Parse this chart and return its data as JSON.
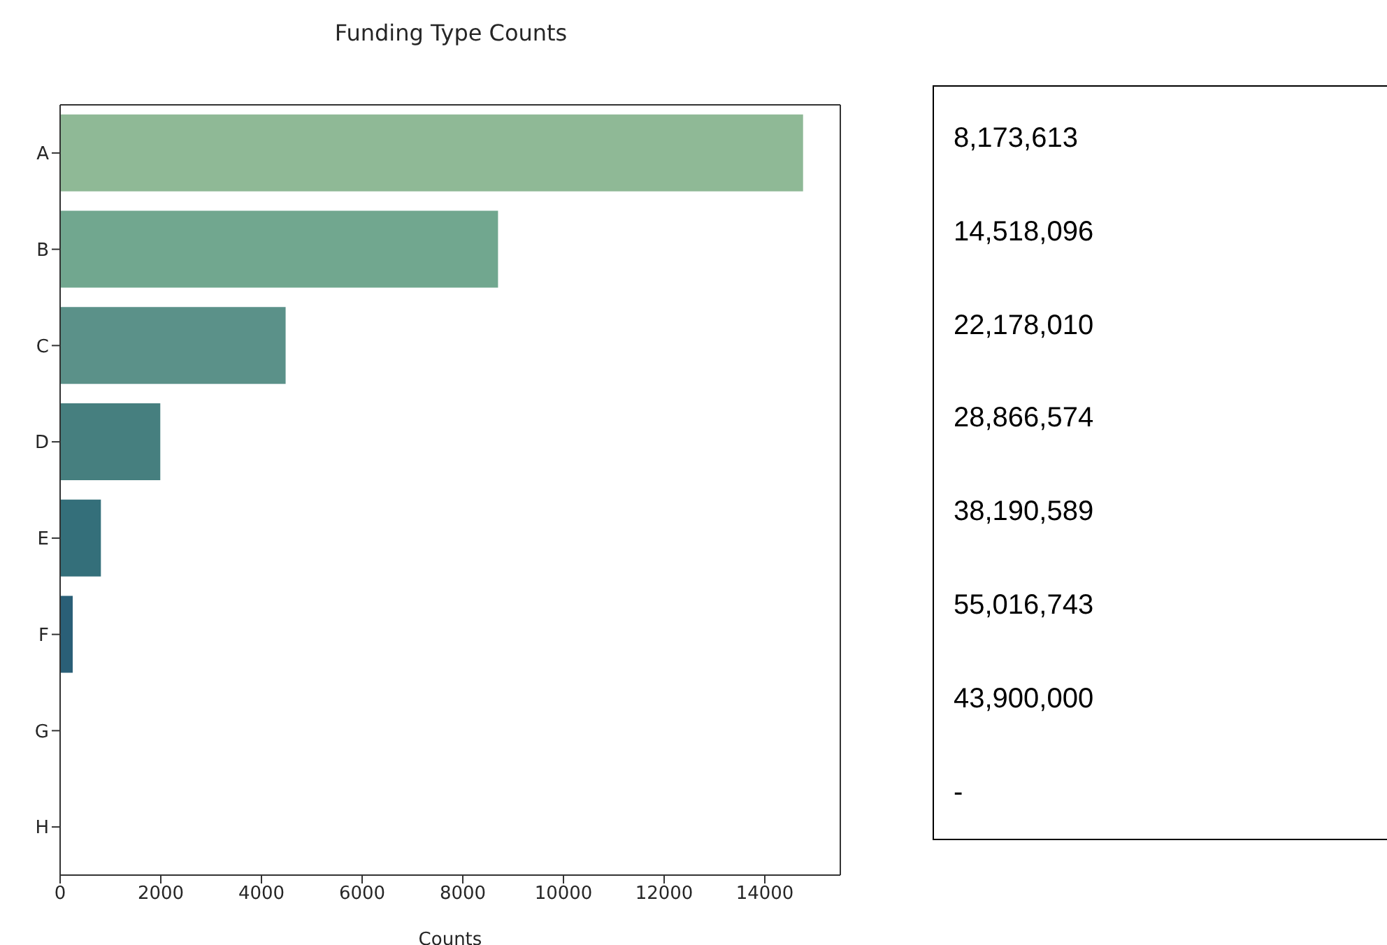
{
  "chart_data": [
    {
      "type": "bar",
      "orientation": "horizontal",
      "title": "Funding Type Counts",
      "xlabel": "Counts",
      "categories": [
        "A",
        "B",
        "C",
        "D",
        "E",
        "F",
        "G",
        "H"
      ],
      "values": [
        14760,
        8700,
        4480,
        1990,
        810,
        250,
        null,
        0
      ],
      "colors": [
        "#8fb996",
        "#71a78f",
        "#5b9189",
        "#467f7f",
        "#346f7a",
        "#2a5f77",
        "#254e6e",
        "#1f3d60"
      ],
      "xlim": [
        0,
        15500
      ],
      "xticks": [
        0,
        2000,
        4000,
        6000,
        8000,
        10000,
        12000,
        14000
      ],
      "grid": false,
      "legend": false
    },
    {
      "type": "other",
      "annotations": [
        "8,173,613",
        "14,518,096",
        "22,178,010",
        "28,866,574",
        "38,190,589",
        "55,016,743",
        "43,900,000",
        "-"
      ]
    }
  ]
}
